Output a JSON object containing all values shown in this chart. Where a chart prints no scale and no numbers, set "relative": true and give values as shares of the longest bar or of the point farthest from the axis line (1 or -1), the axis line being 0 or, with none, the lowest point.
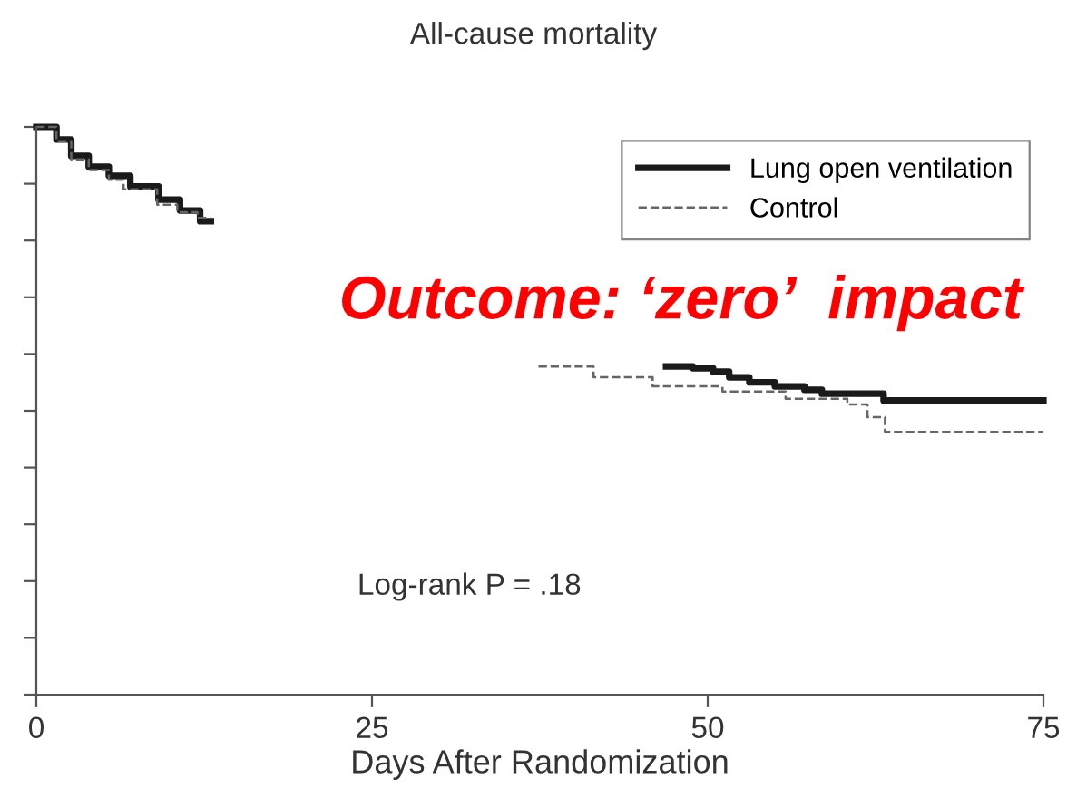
{
  "chart_data": {
    "type": "step",
    "title": "All-cause mortality",
    "xlabel": "Days After Randomization",
    "relative": true,
    "xlim": [
      0,
      75
    ],
    "xticks": [
      0,
      25,
      50,
      75
    ],
    "legend": "top right",
    "grid": false,
    "series": [
      {
        "name": "Lung open ventilation",
        "color": "#1a1a1a",
        "line_style": "solid",
        "x": [
          0,
          1.5,
          2.6,
          3.9,
          5.4,
          7,
          9.1,
          10.7,
          12.2,
          13,
          46.9,
          48.9,
          50.4,
          51.6,
          53.1,
          55.0,
          57.2,
          58.5,
          63.1,
          75
        ],
        "values": [
          1.0,
          0.978,
          0.949,
          0.93,
          0.914,
          0.895,
          0.872,
          0.853,
          0.834,
          null,
          0.578,
          0.575,
          0.569,
          0.559,
          0.55,
          0.543,
          0.537,
          0.53,
          0.518,
          0.518
        ]
      },
      {
        "name": "Control",
        "color": "#666666",
        "line_style": "dashed",
        "x": [
          0,
          1.5,
          2.6,
          3.9,
          5.4,
          6.5,
          9,
          10.5,
          12,
          13,
          37.4,
          41.5,
          45.9,
          51.1,
          55.8,
          60.4,
          61.9,
          63.2,
          75
        ],
        "values": [
          1.0,
          0.975,
          0.943,
          0.924,
          0.907,
          0.89,
          0.863,
          0.85,
          0.84,
          null,
          0.578,
          0.559,
          0.543,
          0.534,
          0.521,
          0.511,
          0.489,
          0.463,
          0.463
        ]
      }
    ],
    "annotations": [
      "Outcome: ‘zero’  impact",
      "Log-rank P = .18"
    ]
  }
}
